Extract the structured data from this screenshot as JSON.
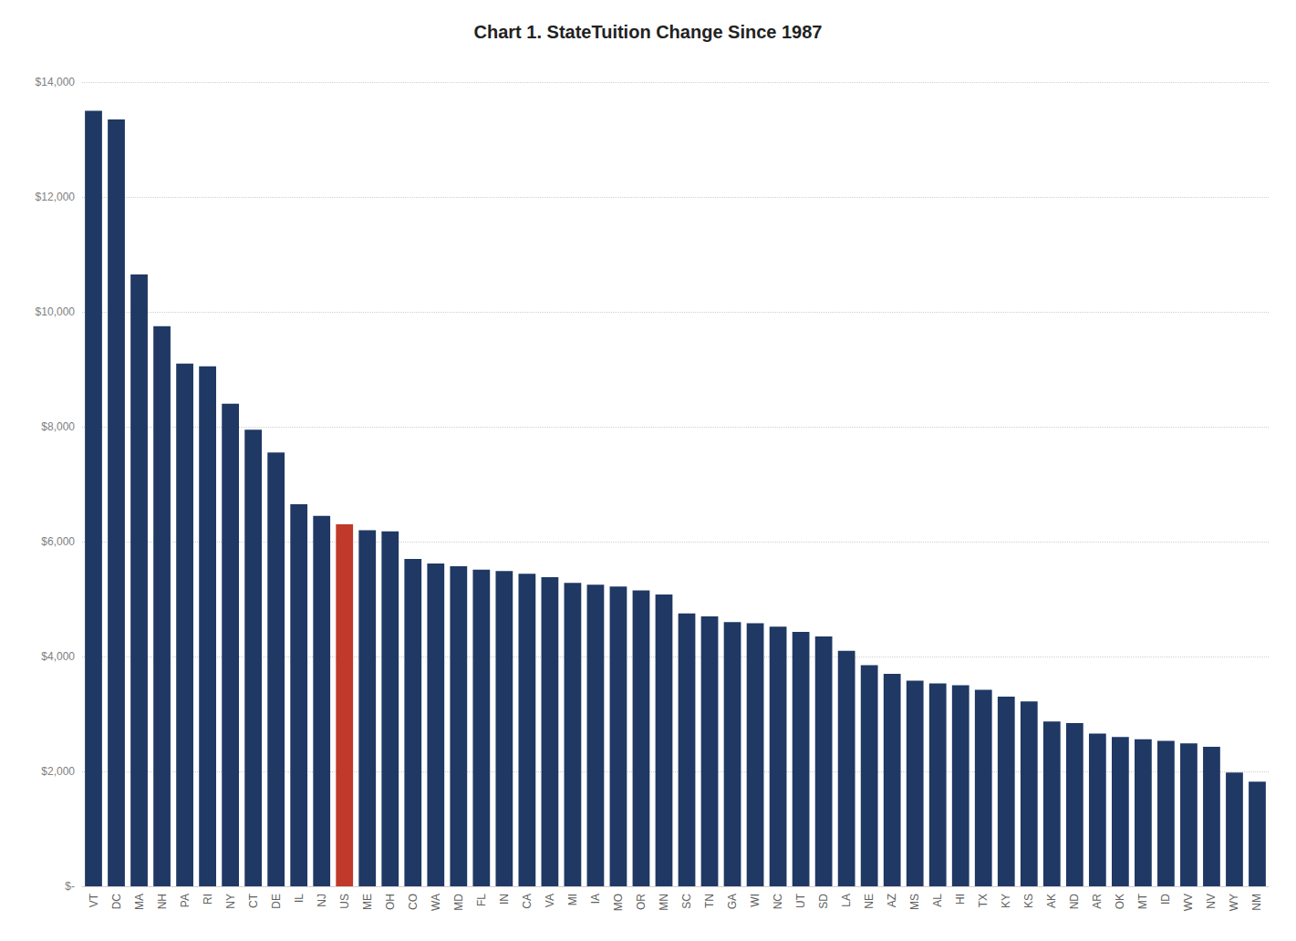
{
  "chart_data": {
    "type": "bar",
    "title": "Chart 1. StateTuition Change Since 1987",
    "categories": [
      "VT",
      "DC",
      "MA",
      "NH",
      "PA",
      "RI",
      "NY",
      "CT",
      "DE",
      "IL",
      "NJ",
      "US",
      "ME",
      "OH",
      "CO",
      "WA",
      "MD",
      "FL",
      "IN",
      "CA",
      "VA",
      "MI",
      "IA",
      "MO",
      "OR",
      "MN",
      "SC",
      "TN",
      "GA",
      "WI",
      "NC",
      "UT",
      "SD",
      "LA",
      "NE",
      "AZ",
      "MS",
      "AL",
      "HI",
      "TX",
      "KY",
      "KS",
      "AK",
      "ND",
      "AR",
      "OK",
      "MT",
      "ID",
      "WV",
      "NV",
      "WY",
      "NM"
    ],
    "values": [
      13500,
      13350,
      10650,
      9750,
      9100,
      9050,
      8400,
      7950,
      7550,
      6650,
      6450,
      6300,
      6200,
      6180,
      5700,
      5620,
      5570,
      5510,
      5490,
      5440,
      5380,
      5280,
      5250,
      5220,
      5150,
      5080,
      4750,
      4700,
      4600,
      4580,
      4520,
      4430,
      4350,
      4100,
      3850,
      3700,
      3580,
      3530,
      3500,
      3420,
      3300,
      3220,
      2870,
      2840,
      2660,
      2600,
      2560,
      2530,
      2490,
      2430,
      1980,
      1820
    ],
    "colors": [
      "#1F3864",
      "#1F3864",
      "#1F3864",
      "#1F3864",
      "#1F3864",
      "#1F3864",
      "#1F3864",
      "#1F3864",
      "#1F3864",
      "#1F3864",
      "#1F3864",
      "#C0392B",
      "#1F3864",
      "#1F3864",
      "#1F3864",
      "#1F3864",
      "#1F3864",
      "#1F3864",
      "#1F3864",
      "#1F3864",
      "#1F3864",
      "#1F3864",
      "#1F3864",
      "#1F3864",
      "#1F3864",
      "#1F3864",
      "#1F3864",
      "#1F3864",
      "#1F3864",
      "#1F3864",
      "#1F3864",
      "#1F3864",
      "#1F3864",
      "#1F3864",
      "#1F3864",
      "#1F3864",
      "#1F3864",
      "#1F3864",
      "#1F3864",
      "#1F3864",
      "#1F3864",
      "#1F3864",
      "#1F3864",
      "#1F3864",
      "#1F3864",
      "#1F3864",
      "#1F3864",
      "#1F3864",
      "#1F3864",
      "#1F3864",
      "#1F3864",
      "#1F3864"
    ],
    "ylim": [
      0,
      14000
    ],
    "yticks": [
      {
        "value": 0,
        "label": "$-"
      },
      {
        "value": 2000,
        "label": "$2,000"
      },
      {
        "value": 4000,
        "label": "$4,000"
      },
      {
        "value": 6000,
        "label": "$6,000"
      },
      {
        "value": 8000,
        "label": "$8,000"
      },
      {
        "value": 10000,
        "label": "$10,000"
      },
      {
        "value": 12000,
        "label": "$12,000"
      },
      {
        "value": 14000,
        "label": "$14,000"
      }
    ],
    "grid": true
  }
}
